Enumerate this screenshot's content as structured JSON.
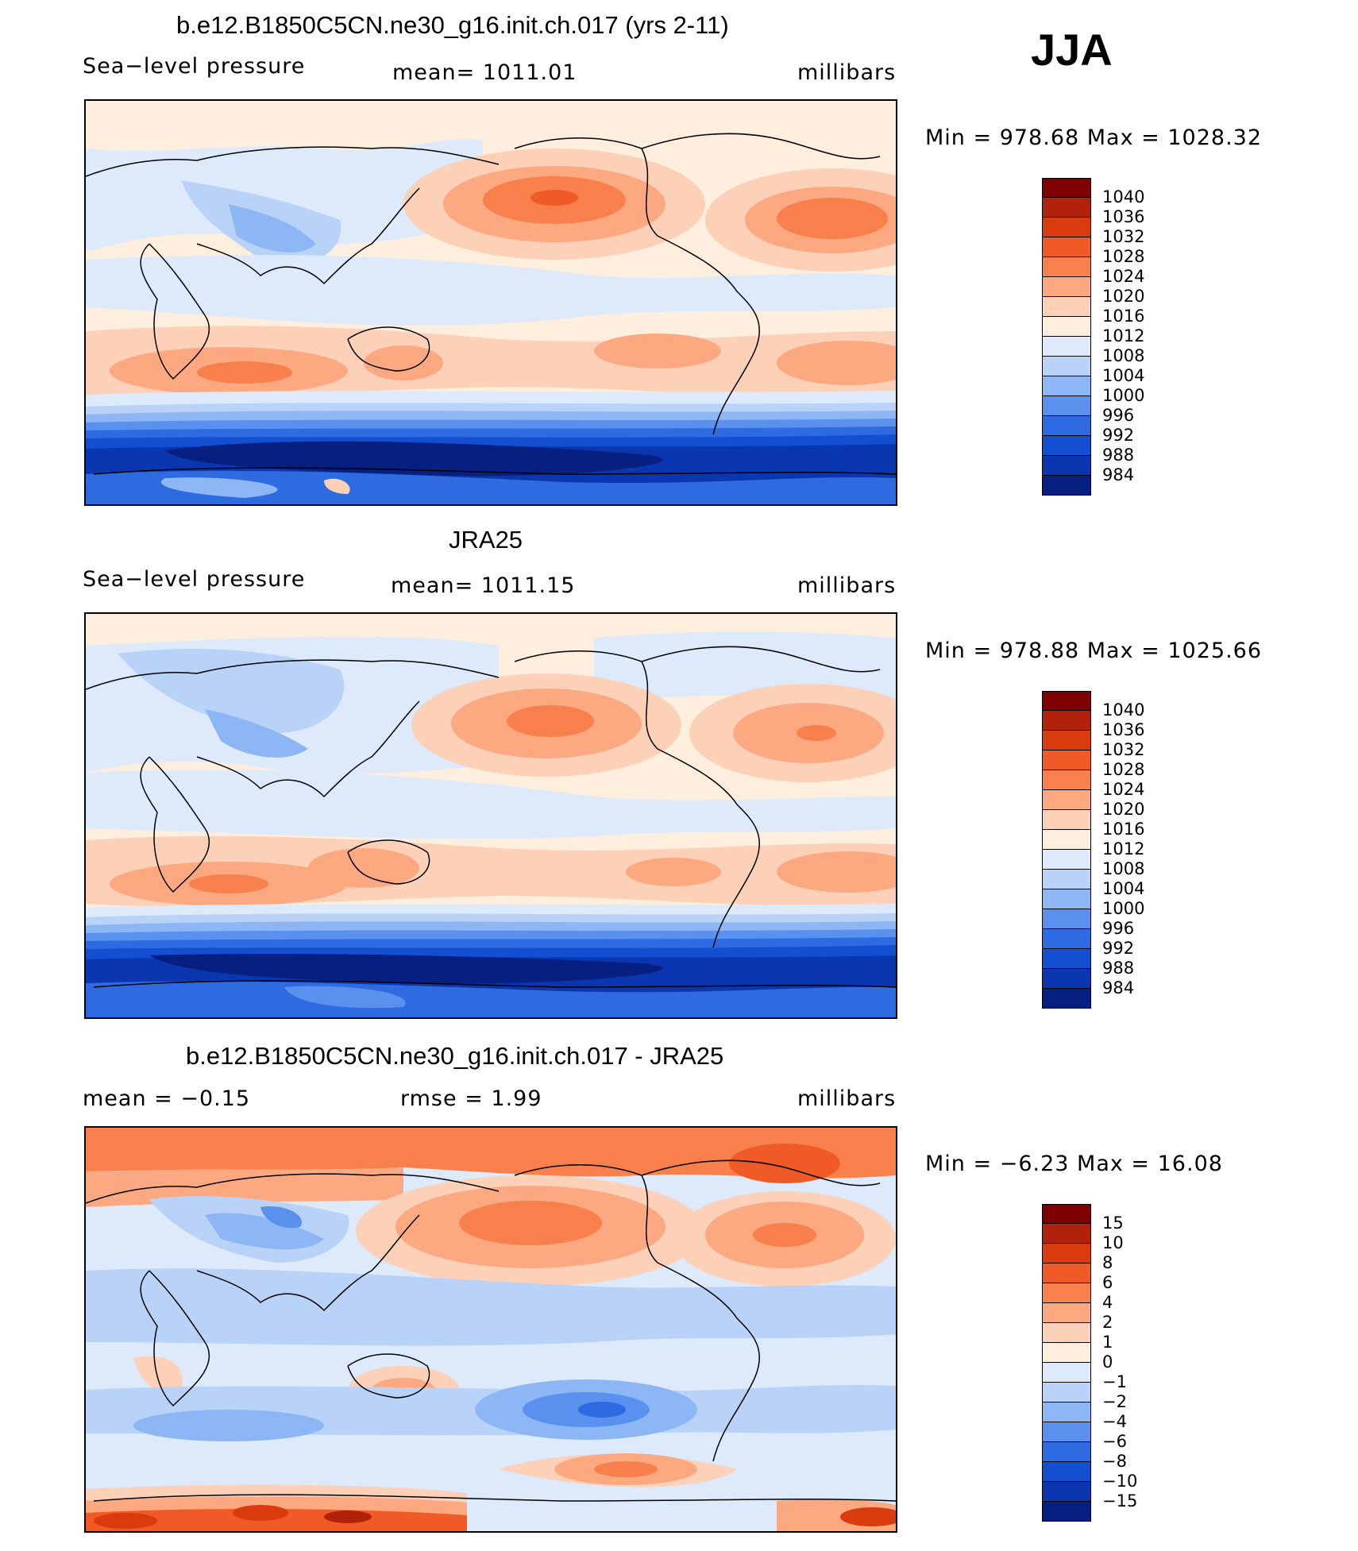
{
  "season": "JJA",
  "panels": [
    {
      "title": "b.e12.B1850C5CN.ne30_g16.init.ch.017 (yrs 2-11)",
      "left_label": "Sea−level pressure",
      "center_label": "mean=  1011.01",
      "right_label": "millibars",
      "minmax": "Min  =  978.68  Max  =  1028.32",
      "legend_levels": [
        "1040",
        "1036",
        "1032",
        "1028",
        "1024",
        "1020",
        "1016",
        "1012",
        "1008",
        "1004",
        "1000",
        "996",
        "992",
        "988",
        "984"
      ]
    },
    {
      "title": "JRA25",
      "left_label": "Sea−level pressure",
      "center_label": "mean=  1011.15",
      "right_label": "millibars",
      "minmax": "Min  =  978.88  Max  =  1025.66",
      "legend_levels": [
        "1040",
        "1036",
        "1032",
        "1028",
        "1024",
        "1020",
        "1016",
        "1012",
        "1008",
        "1004",
        "1000",
        "996",
        "992",
        "988",
        "984"
      ]
    },
    {
      "title": "b.e12.B1850C5CN.ne30_g16.init.ch.017 - JRA25",
      "left_label": "mean  =    −0.15",
      "center_label": "rmse  =     1.99",
      "right_label": "millibars",
      "minmax": "Min  =    −6.23  Max  =    16.08",
      "legend_levels": [
        "15",
        "10",
        "8",
        "6",
        "4",
        "2",
        "1",
        "0",
        "−1",
        "−2",
        "−4",
        "−6",
        "−8",
        "−10",
        "−15"
      ]
    }
  ],
  "colors": {
    "abs_scale": [
      "#7f0000",
      "#b0230a",
      "#d93a0e",
      "#f05a26",
      "#f8804d",
      "#fca982",
      "#fdd0b8",
      "#fdeedd",
      "#ddeafb",
      "#b8d2f8",
      "#8db6f4",
      "#5a91ee",
      "#2f6be0",
      "#134fd1",
      "#0a36b0",
      "#061f80"
    ],
    "diff_scale": [
      "#7f0000",
      "#b0230a",
      "#d93a0e",
      "#f05a26",
      "#f8804d",
      "#fca982",
      "#fdd0b8",
      "#fdeedd",
      "#ddeafb",
      "#b8d2f8",
      "#8db6f4",
      "#5a91ee",
      "#2f6be0",
      "#134fd1",
      "#0a36b0",
      "#061f80"
    ]
  }
}
